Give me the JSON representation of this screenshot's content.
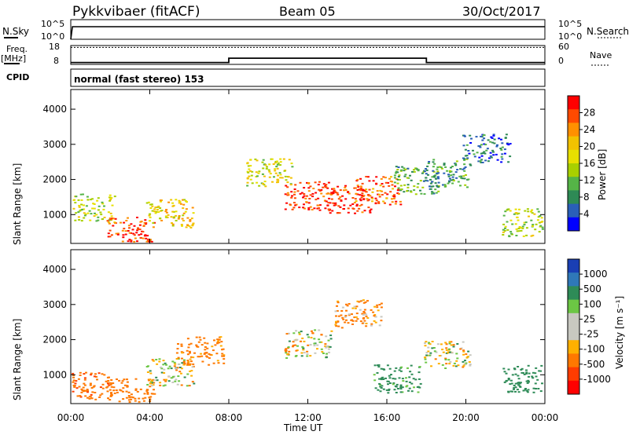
{
  "header": {
    "station": "Pykkvibaer (fitACF)",
    "beam": "Beam 05",
    "date": "30/Oct/2017"
  },
  "top_panels": {
    "nsky_label": "N.Sky",
    "nsky_top": "10^5",
    "nsky_bottom": "10^0",
    "nsearch_label": "N.Search",
    "nsearch_top": "10^5",
    "nsearch_bottom": "10^0",
    "freq_label": "Freq.",
    "freq_unit": "[MHz]",
    "freq_top": "18",
    "freq_bottom": "8",
    "nave_label": "Nave",
    "nave_top": "60",
    "nave_bottom": "0",
    "cpid_label": "CPID",
    "cpid_text": "normal (fast stereo) 153"
  },
  "x_axis": {
    "label": "Time UT",
    "ticks": [
      "00:00",
      "04:00",
      "08:00",
      "12:00",
      "16:00",
      "20:00",
      "00:00"
    ]
  },
  "power_colorbar": {
    "title": "Power [dB]",
    "labels": [
      "28",
      "24",
      "20",
      "16",
      "12",
      "8",
      "4"
    ],
    "colors": [
      "#ff0000",
      "#ff4a00",
      "#ff9000",
      "#f2c200",
      "#e8e000",
      "#a8d000",
      "#55b447",
      "#2e8a55",
      "#2a5fb8",
      "#0000ff"
    ]
  },
  "velocity_colorbar": {
    "title": "Velocity [m s⁻¹]",
    "labels": [
      "1000",
      "500",
      "100",
      "25",
      "-25",
      "-100",
      "-500",
      "-1000"
    ],
    "colors": [
      "#1a3fb4",
      "#2f78b8",
      "#2e8b57",
      "#6cc644",
      "#c8c8c0",
      "#c8c8c0",
      "#ffb000",
      "#ff7800",
      "#ff3c00",
      "#ff0000"
    ]
  },
  "chart_data": [
    {
      "type": "line",
      "title": "N.Sky / N.Search",
      "xlabel": "Time UT",
      "ylabel": "N.Sky",
      "y_scale": "log",
      "ylim": [
        "10^0",
        "10^5"
      ],
      "x": [
        "00:00",
        "00:05",
        "24:00"
      ],
      "series": [
        {
          "name": "N.Sky",
          "values": [
            1,
            100000,
            100000
          ]
        }
      ]
    },
    {
      "type": "line",
      "title": "Freq. / Nave",
      "xlabel": "Time UT",
      "ylabel": "Freq. [MHz]",
      "ylim": [
        8,
        18
      ],
      "x": [
        "00:00",
        "08:00",
        "08:00",
        "18:00",
        "18:00",
        "24:00"
      ],
      "series": [
        {
          "name": "Freq.",
          "values": [
            9,
            9,
            11.3,
            11.3,
            9,
            9
          ]
        },
        {
          "name": "Nave",
          "values": [
            54,
            54,
            54,
            54,
            54,
            54
          ]
        }
      ]
    },
    {
      "type": "heatmap",
      "title": "Power",
      "xlabel": "Time UT",
      "ylabel": "Slant Range [km]",
      "xlim": [
        "00:00",
        "24:00"
      ],
      "ylim": [
        180,
        4560
      ],
      "y_ticks": [
        1000,
        2000,
        3000,
        4000
      ],
      "colorbar": {
        "label": "Power [dB]",
        "range": [
          0,
          30
        ]
      },
      "x": [
        "01:00",
        "03:00",
        "05:00",
        "10:00",
        "12:00",
        "14:00",
        "15:30",
        "17:30",
        "19:00",
        "21:00",
        "23:00"
      ],
      "values": [
        {
          "time": "01:00",
          "range_km": 1200,
          "power_db": 14
        },
        {
          "time": "03:00",
          "range_km": 550,
          "power_db": 26
        },
        {
          "time": "05:00",
          "range_km": 1050,
          "power_db": 18
        },
        {
          "time": "10:00",
          "range_km": 2200,
          "power_db": 16
        },
        {
          "time": "12:00",
          "range_km": 1550,
          "power_db": 26
        },
        {
          "time": "14:00",
          "range_km": 1450,
          "power_db": 27
        },
        {
          "time": "15:30",
          "range_km": 1700,
          "power_db": 24
        },
        {
          "time": "17:30",
          "range_km": 2000,
          "power_db": 10
        },
        {
          "time": "19:00",
          "range_km": 2200,
          "power_db": 8
        },
        {
          "time": "21:00",
          "range_km": 2900,
          "power_db": 6
        },
        {
          "time": "23:00",
          "range_km": 800,
          "power_db": 14
        }
      ]
    },
    {
      "type": "heatmap",
      "title": "Velocity",
      "xlabel": "Time UT",
      "ylabel": "Slant Range [km]",
      "xlim": [
        "00:00",
        "24:00"
      ],
      "ylim": [
        180,
        4560
      ],
      "y_ticks": [
        1000,
        2000,
        3000,
        4000
      ],
      "colorbar": {
        "label": "Velocity [m s⁻¹]",
        "range": [
          -1000,
          1000
        ]
      },
      "values": [
        {
          "time": "01:00",
          "range_km": 700,
          "velocity": -400
        },
        {
          "time": "03:00",
          "range_km": 500,
          "velocity": -300
        },
        {
          "time": "05:00",
          "range_km": 1100,
          "velocity": 0
        },
        {
          "time": "06:30",
          "range_km": 1700,
          "velocity": -200
        },
        {
          "time": "12:00",
          "range_km": 1900,
          "velocity": 0
        },
        {
          "time": "14:30",
          "range_km": 2750,
          "velocity": -150
        },
        {
          "time": "16:30",
          "range_km": 900,
          "velocity": 200
        },
        {
          "time": "19:00",
          "range_km": 1600,
          "velocity": 0
        },
        {
          "time": "23:00",
          "range_km": 900,
          "velocity": 300
        }
      ]
    }
  ]
}
